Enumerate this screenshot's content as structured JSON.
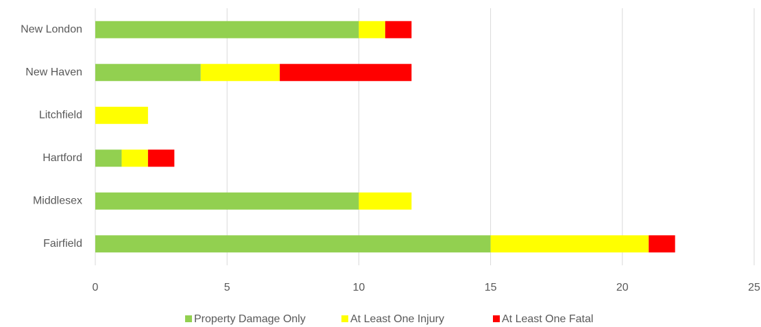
{
  "chart_data": {
    "type": "bar",
    "horizontal": true,
    "stacked": true,
    "categories": [
      "Fairfield",
      "Middlesex",
      "Hartford",
      "Litchfield",
      "New Haven",
      "New London"
    ],
    "series": [
      {
        "name": "Property Damage Only",
        "color": "#92d050",
        "values": [
          15,
          10,
          1,
          0,
          4,
          10
        ]
      },
      {
        "name": "At Least One Injury",
        "color": "#ffff00",
        "values": [
          6,
          2,
          1,
          2,
          3,
          1
        ]
      },
      {
        "name": "At Least One Fatal",
        "color": "#ff0000",
        "values": [
          1,
          0,
          1,
          0,
          5,
          1
        ]
      }
    ],
    "xlim": [
      0,
      25
    ],
    "xticks": [
      0,
      5,
      10,
      15,
      20,
      25
    ],
    "grid": true,
    "legend": "bottom"
  }
}
